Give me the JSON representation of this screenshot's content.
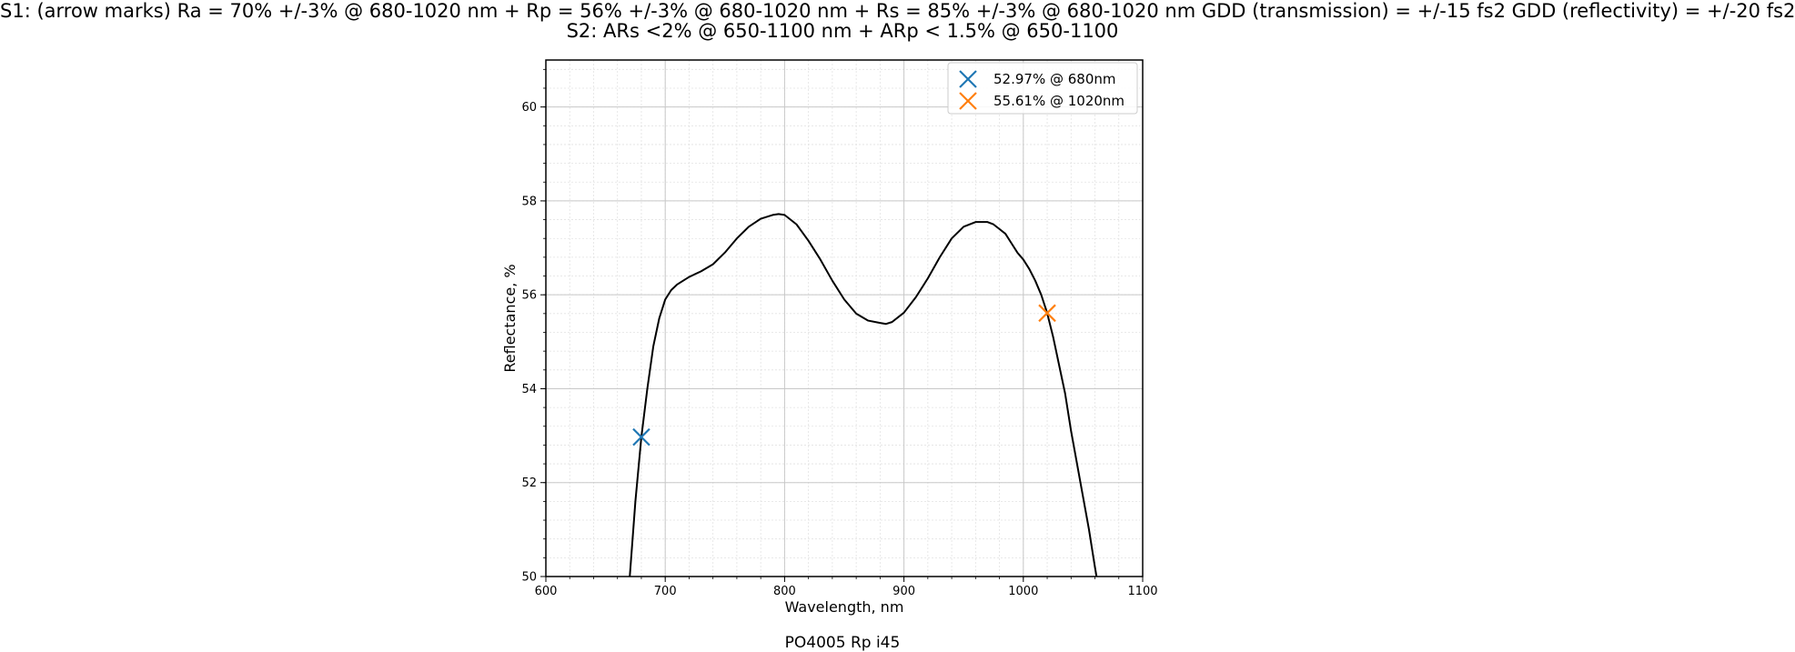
{
  "title": {
    "line1": "S1: (arrow marks)  Ra = 70% +/-3% @ 680-1020 nm + Rp = 56% +/-3% @ 680-1020 nm + Rs = 85% +/-3% @ 680-1020 nm GDD (transmission) = +/-15 fs2 GDD (reflectivity) = +/-20 fs2",
    "line2": "S2: ARs <2% @ 650-1100 nm + ARp < 1.5% @ 650-1100"
  },
  "caption": "PO4005 Rp i45",
  "chart_data": {
    "type": "line",
    "xlabel": "Wavelength, nm",
    "ylabel": "Reflectance, %",
    "xlim": [
      600,
      1100
    ],
    "ylim": [
      50,
      61
    ],
    "xticks": [
      "600",
      "700",
      "800",
      "900",
      "1000",
      "1100"
    ],
    "yticks": [
      "50",
      "52",
      "54",
      "56",
      "58",
      "60"
    ],
    "grid": true,
    "minor_grid": true,
    "legend_position": "top-right",
    "series": [
      {
        "color": "#000000",
        "x": [
          670,
          675,
          680,
          685,
          690,
          695,
          700,
          705,
          710,
          715,
          720,
          730,
          740,
          750,
          760,
          770,
          780,
          790,
          795,
          800,
          810,
          820,
          830,
          840,
          850,
          860,
          870,
          880,
          885,
          890,
          900,
          910,
          920,
          930,
          940,
          950,
          960,
          970,
          975,
          980,
          985,
          990,
          995,
          1000,
          1005,
          1010,
          1015,
          1020,
          1025,
          1030,
          1035,
          1040,
          1045,
          1050,
          1055,
          1060,
          1062
        ],
        "y": [
          49.9,
          51.6,
          52.97,
          54.0,
          54.9,
          55.5,
          55.9,
          56.1,
          56.22,
          56.3,
          56.38,
          56.5,
          56.65,
          56.9,
          57.2,
          57.45,
          57.62,
          57.7,
          57.72,
          57.7,
          57.5,
          57.15,
          56.75,
          56.3,
          55.9,
          55.6,
          55.45,
          55.4,
          55.38,
          55.42,
          55.62,
          55.95,
          56.35,
          56.8,
          57.2,
          57.45,
          57.55,
          57.55,
          57.5,
          57.4,
          57.3,
          57.1,
          56.9,
          56.75,
          56.55,
          56.3,
          56.0,
          55.61,
          55.1,
          54.5,
          53.9,
          53.1,
          52.4,
          51.7,
          51.0,
          50.2,
          49.9
        ]
      }
    ],
    "markers": [
      {
        "x": 680,
        "y": 52.97,
        "color": "#1f77b4",
        "label": "52.97% @ 680nm"
      },
      {
        "x": 1020,
        "y": 55.61,
        "color": "#ff7f0e",
        "label": "55.61% @ 1020nm"
      }
    ]
  }
}
